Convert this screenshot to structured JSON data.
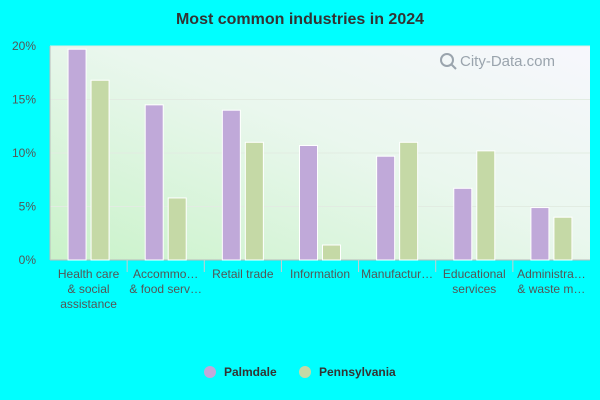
{
  "chart_data": {
    "type": "bar",
    "title": "Most common industries in 2024",
    "categories": [
      [
        "Health care",
        "& social",
        "assistance"
      ],
      [
        "Accommo…",
        "& food serv…"
      ],
      [
        "Retail trade"
      ],
      [
        "Information"
      ],
      [
        "Manufactur…"
      ],
      [
        "Educational",
        "services"
      ],
      [
        "Administra…",
        "& waste m…"
      ]
    ],
    "series": [
      {
        "name": "Palmdale",
        "color": "#c0a9d9",
        "values": [
          19.7,
          14.5,
          14.0,
          10.7,
          9.7,
          6.7,
          4.9
        ]
      },
      {
        "name": "Pennsylvania",
        "color": "#c5d9a6",
        "values": [
          16.8,
          5.8,
          11.0,
          1.4,
          11.0,
          10.2,
          4.0
        ]
      }
    ],
    "yticks": [
      "0%",
      "5%",
      "10%",
      "15%",
      "20%"
    ],
    "ylim": [
      0,
      20
    ],
    "grid": true,
    "legend_position": "bottom"
  },
  "watermark": "City-Data.com"
}
